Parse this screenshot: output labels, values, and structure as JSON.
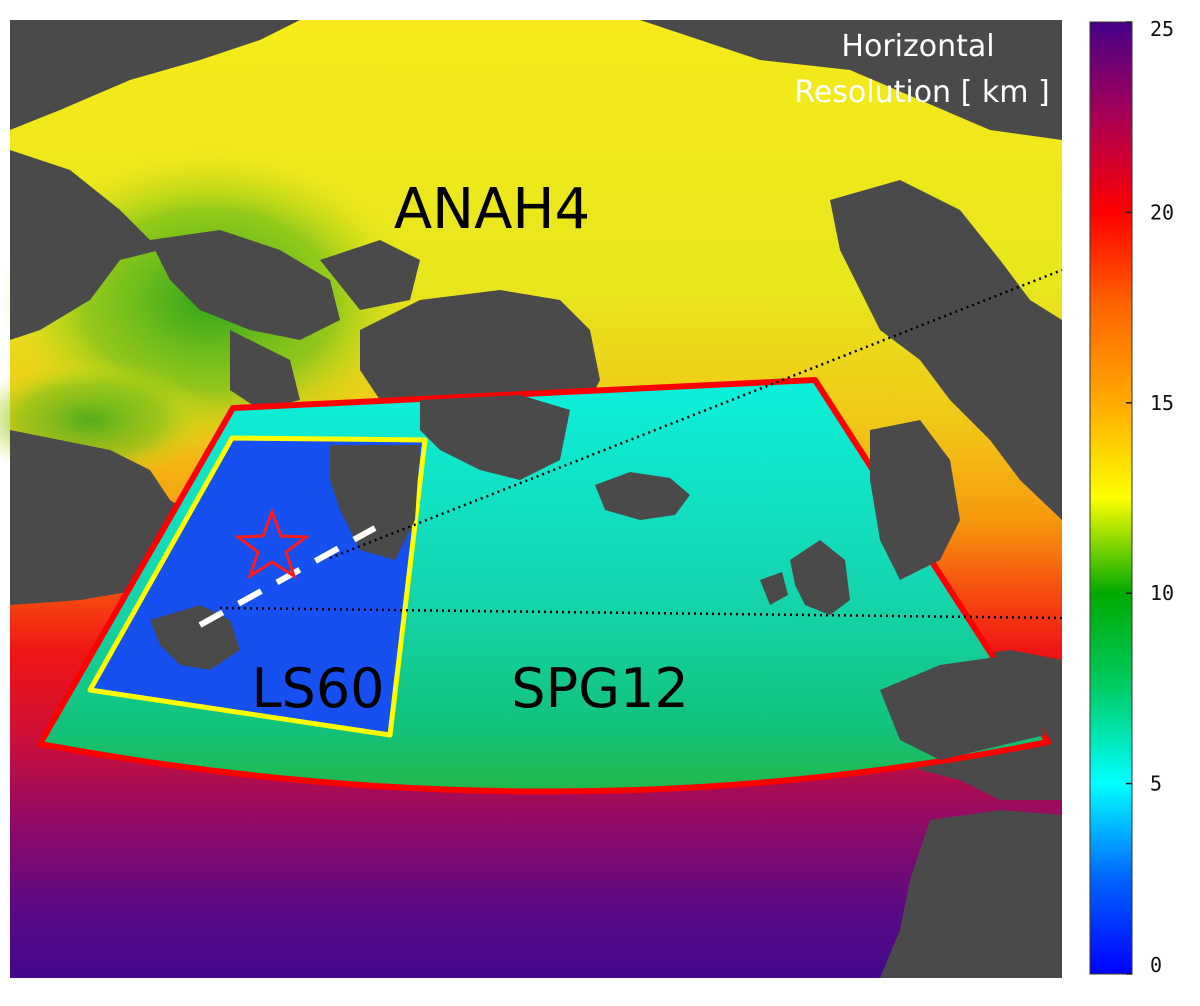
{
  "title": {
    "line1": "Horizontal",
    "line2": "Resolution [ km ]"
  },
  "regions": {
    "outer": "ANAH4",
    "middle": "SPG12",
    "inner": "LS60"
  },
  "colorbar": {
    "min": 0,
    "max": 25,
    "ticks": [
      "0",
      "5",
      "10",
      "15",
      "20",
      "25"
    ]
  },
  "colors": {
    "land": "#4a4a4a",
    "spg12_fill": "#14dcb0",
    "ls60_fill": "#1650f0",
    "spg12_border": "#ff0000",
    "ls60_border": "#ffff00",
    "star": "#ff1a1a",
    "section_line": "#ffffff"
  },
  "markers": {
    "star": "star-icon"
  }
}
